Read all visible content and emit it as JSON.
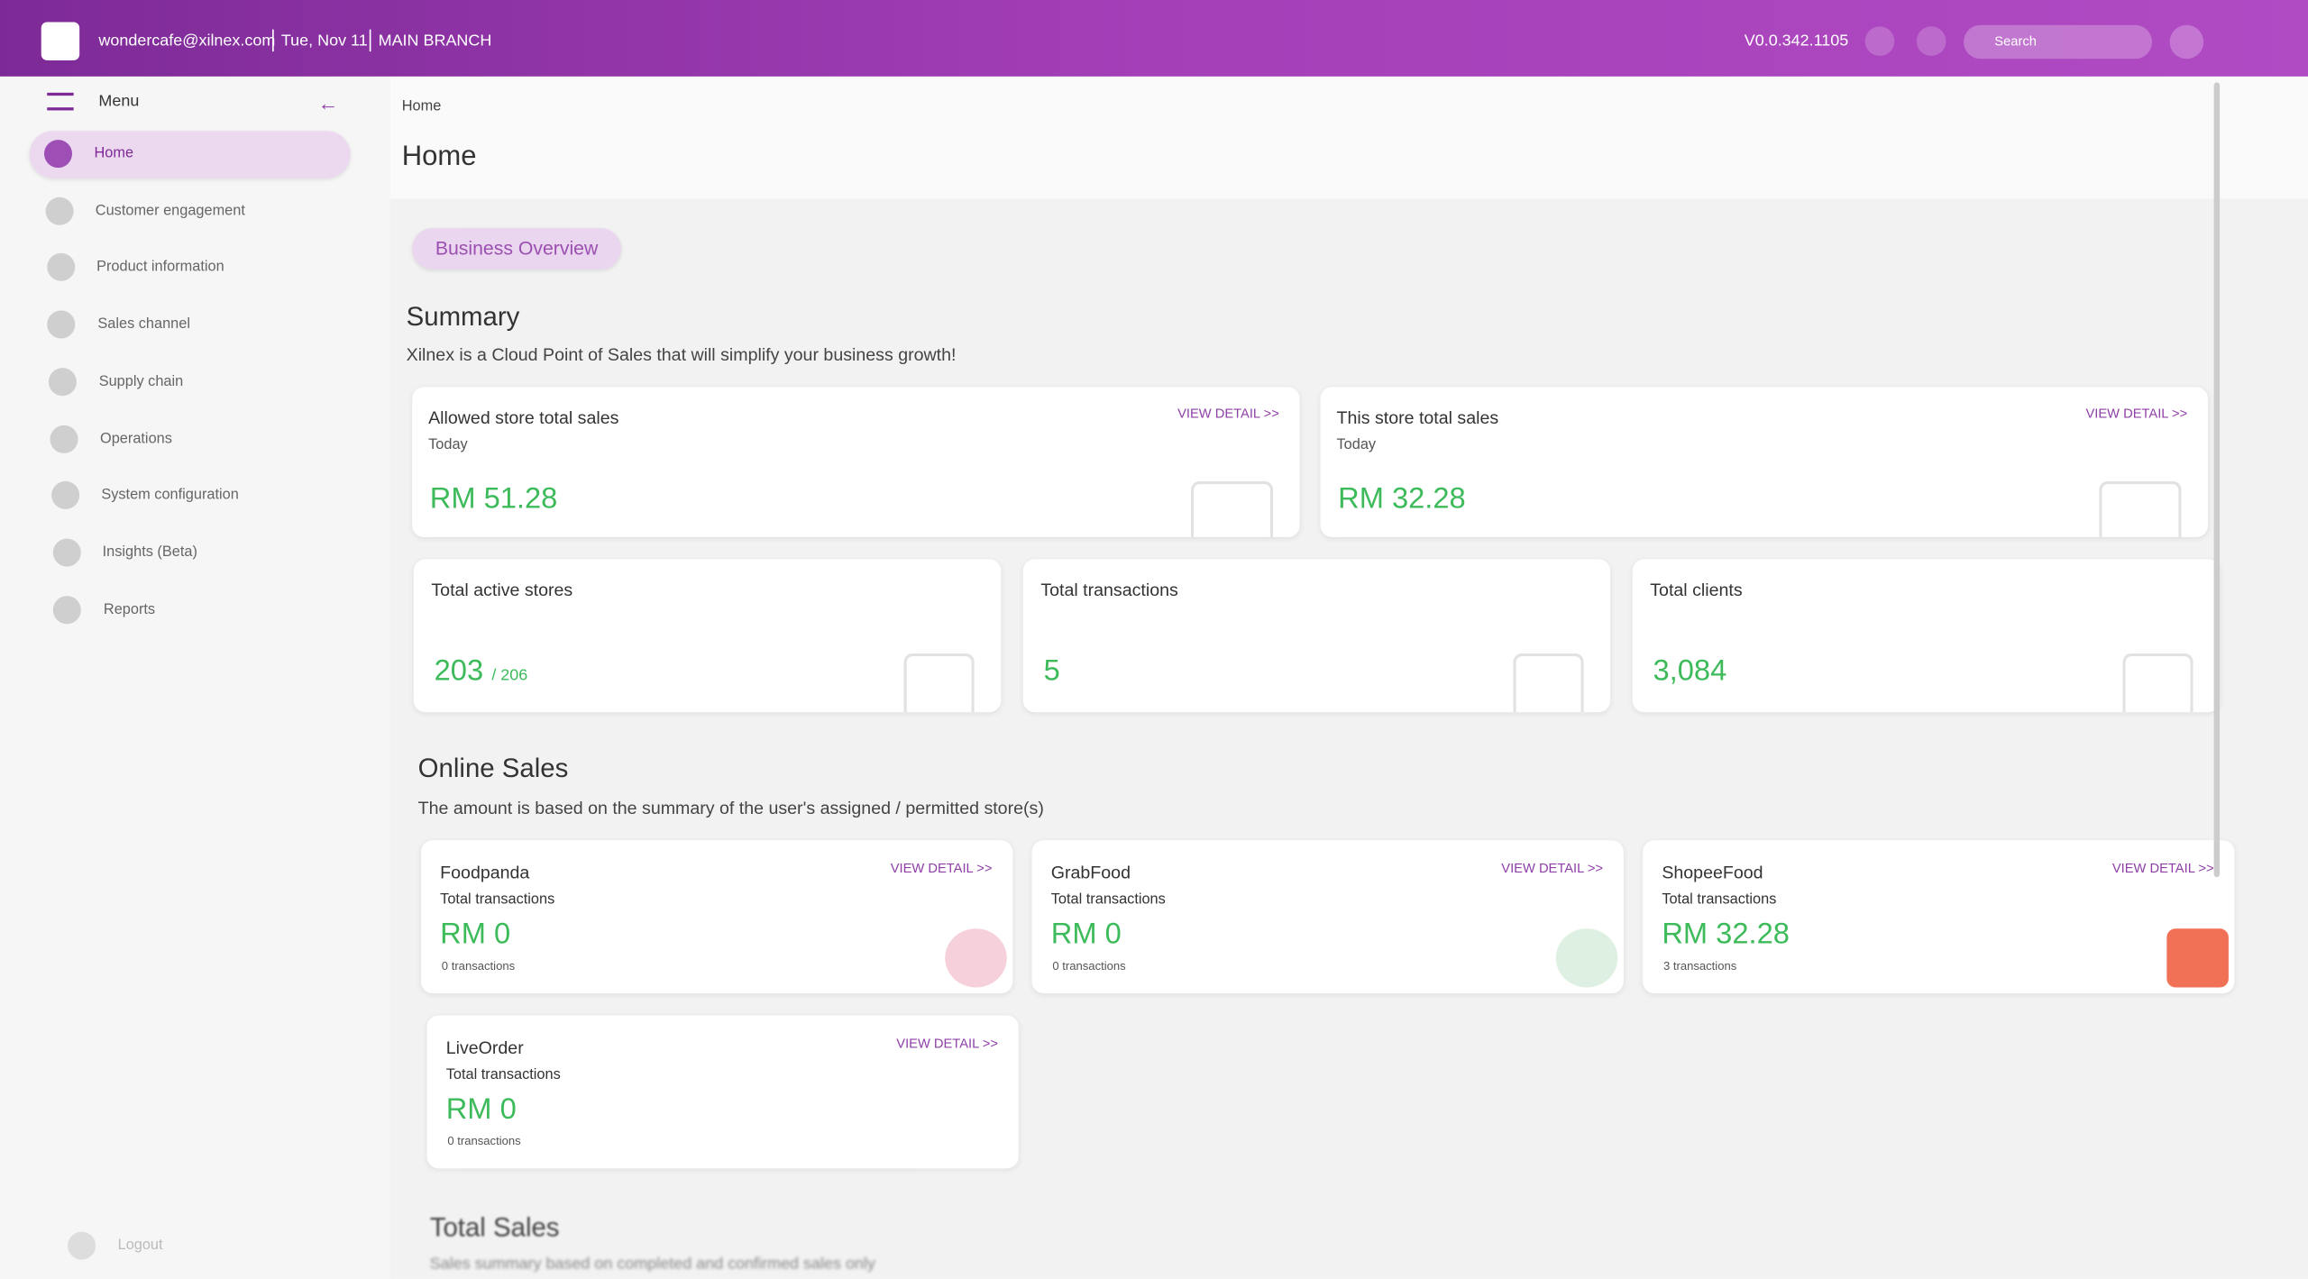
{
  "header": {
    "email": "wondercafe@xilnex.com",
    "date": "Tue, Nov 11",
    "branch": "MAIN BRANCH",
    "version": "V0.0.342.1105",
    "search_placeholder": "Search"
  },
  "sidebar": {
    "title": "Menu",
    "items": [
      "Home",
      "Customer engagement",
      "Product information",
      "Sales channel",
      "Supply chain",
      "Operations",
      "System configuration",
      "Insights (Beta)",
      "Reports"
    ],
    "logout": "Logout"
  },
  "breadcrumb": "Home",
  "page_title": "Home",
  "tab": "Business Overview",
  "summary": {
    "title": "Summary",
    "description": "Xilnex is a Cloud Point of Sales that will simplify your business growth!",
    "sales_cards": [
      {
        "title": "Allowed store total sales",
        "period": "Today",
        "value": "RM 51.28",
        "link": "VIEW DETAIL >>"
      },
      {
        "title": "This store total sales",
        "period": "Today",
        "value": "RM 32.28",
        "link": "VIEW DETAIL >>"
      }
    ],
    "stat_cards": [
      {
        "title": "Total active stores",
        "value": "203",
        "total": "/ 206"
      },
      {
        "title": "Total transactions",
        "value": "5"
      },
      {
        "title": "Total clients",
        "value": "3,084"
      }
    ]
  },
  "online_sales": {
    "title": "Online Sales",
    "description": "The amount is based on the summary of the user's assigned / permitted store(s)",
    "channels": [
      {
        "name": "Foodpanda",
        "label": "Total transactions",
        "value": "RM 0",
        "count": "0 transactions",
        "link": "VIEW DETAIL >>"
      },
      {
        "name": "GrabFood",
        "label": "Total transactions",
        "value": "RM 0",
        "count": "0 transactions",
        "link": "VIEW DETAIL >>"
      },
      {
        "name": "ShopeeFood",
        "label": "Total transactions",
        "value": "RM 32.28",
        "count": "3 transactions",
        "link": "VIEW DETAIL >>"
      },
      {
        "name": "LiveOrder",
        "label": "Total transactions",
        "value": "RM 0",
        "count": "0 transactions",
        "link": "VIEW DETAIL >>"
      }
    ]
  },
  "total_sales": {
    "title": "Total Sales",
    "description": "Sales summary based on completed and confirmed sales only"
  }
}
